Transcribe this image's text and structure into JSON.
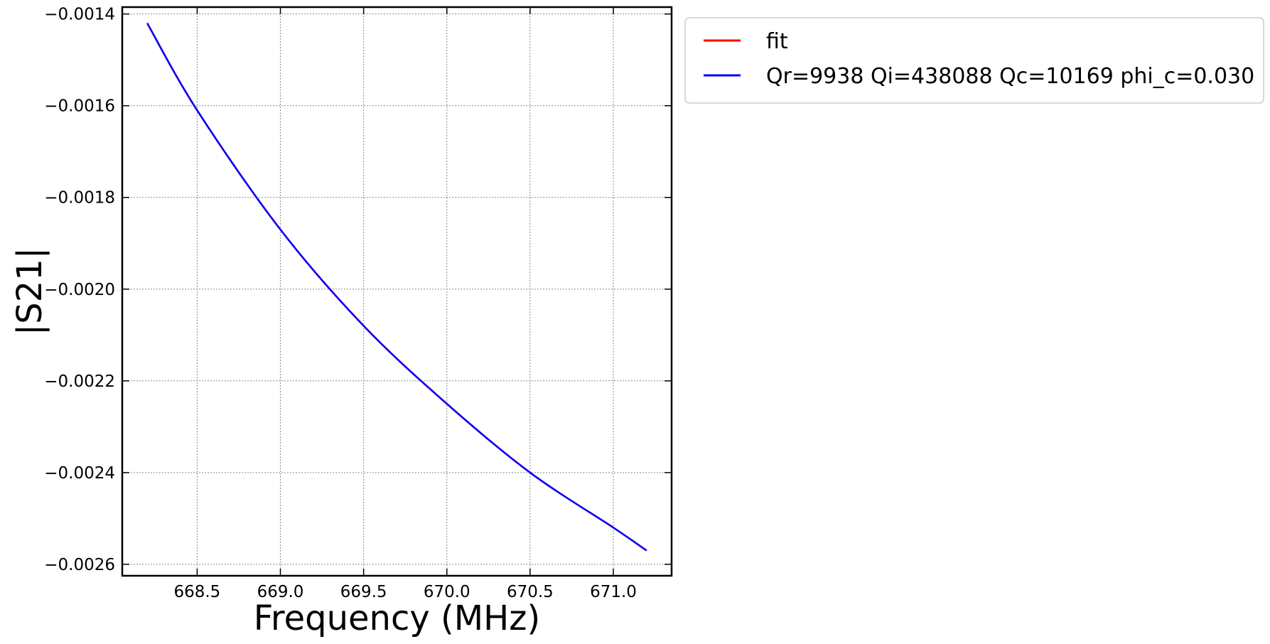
{
  "chart_data": {
    "type": "line",
    "title": "",
    "xlabel": "Frequency (MHz)",
    "ylabel": "|S21|",
    "xlim": [
      668.05,
      671.35
    ],
    "ylim": [
      -0.002625,
      -0.001385
    ],
    "x_ticks": [
      668.5,
      669.0,
      669.5,
      670.0,
      670.5,
      671.0
    ],
    "x_tick_labels": [
      "668.5",
      "669.0",
      "669.5",
      "670.0",
      "670.5",
      "671.0"
    ],
    "y_ticks": [
      -0.0014,
      -0.0016,
      -0.0018,
      -0.002,
      -0.0022,
      -0.0024,
      -0.0026
    ],
    "y_tick_labels": [
      "−0.0014",
      "−0.0016",
      "−0.0018",
      "−0.0020",
      "−0.0022",
      "−0.0024",
      "−0.0026"
    ],
    "grid": true,
    "legend_position": "outside-top-right",
    "series": [
      {
        "name": "fit",
        "color": "#ff0000",
        "x": [
          668.2,
          668.5,
          669.0,
          669.5,
          670.0,
          670.5,
          671.0,
          671.2
        ],
        "y": [
          -0.00142,
          -0.00161,
          -0.00187,
          -0.00208,
          -0.00225,
          -0.0024,
          -0.00252,
          -0.00257
        ]
      },
      {
        "name": "Qr=9938 Qi=438088 Qc=10169 phi_c=0.030",
        "color": "#0000ff",
        "x": [
          668.2,
          668.5,
          669.0,
          669.5,
          670.0,
          670.5,
          671.0,
          671.2
        ],
        "y": [
          -0.00142,
          -0.00161,
          -0.00187,
          -0.00208,
          -0.00225,
          -0.0024,
          -0.00252,
          -0.00257
        ]
      }
    ]
  }
}
